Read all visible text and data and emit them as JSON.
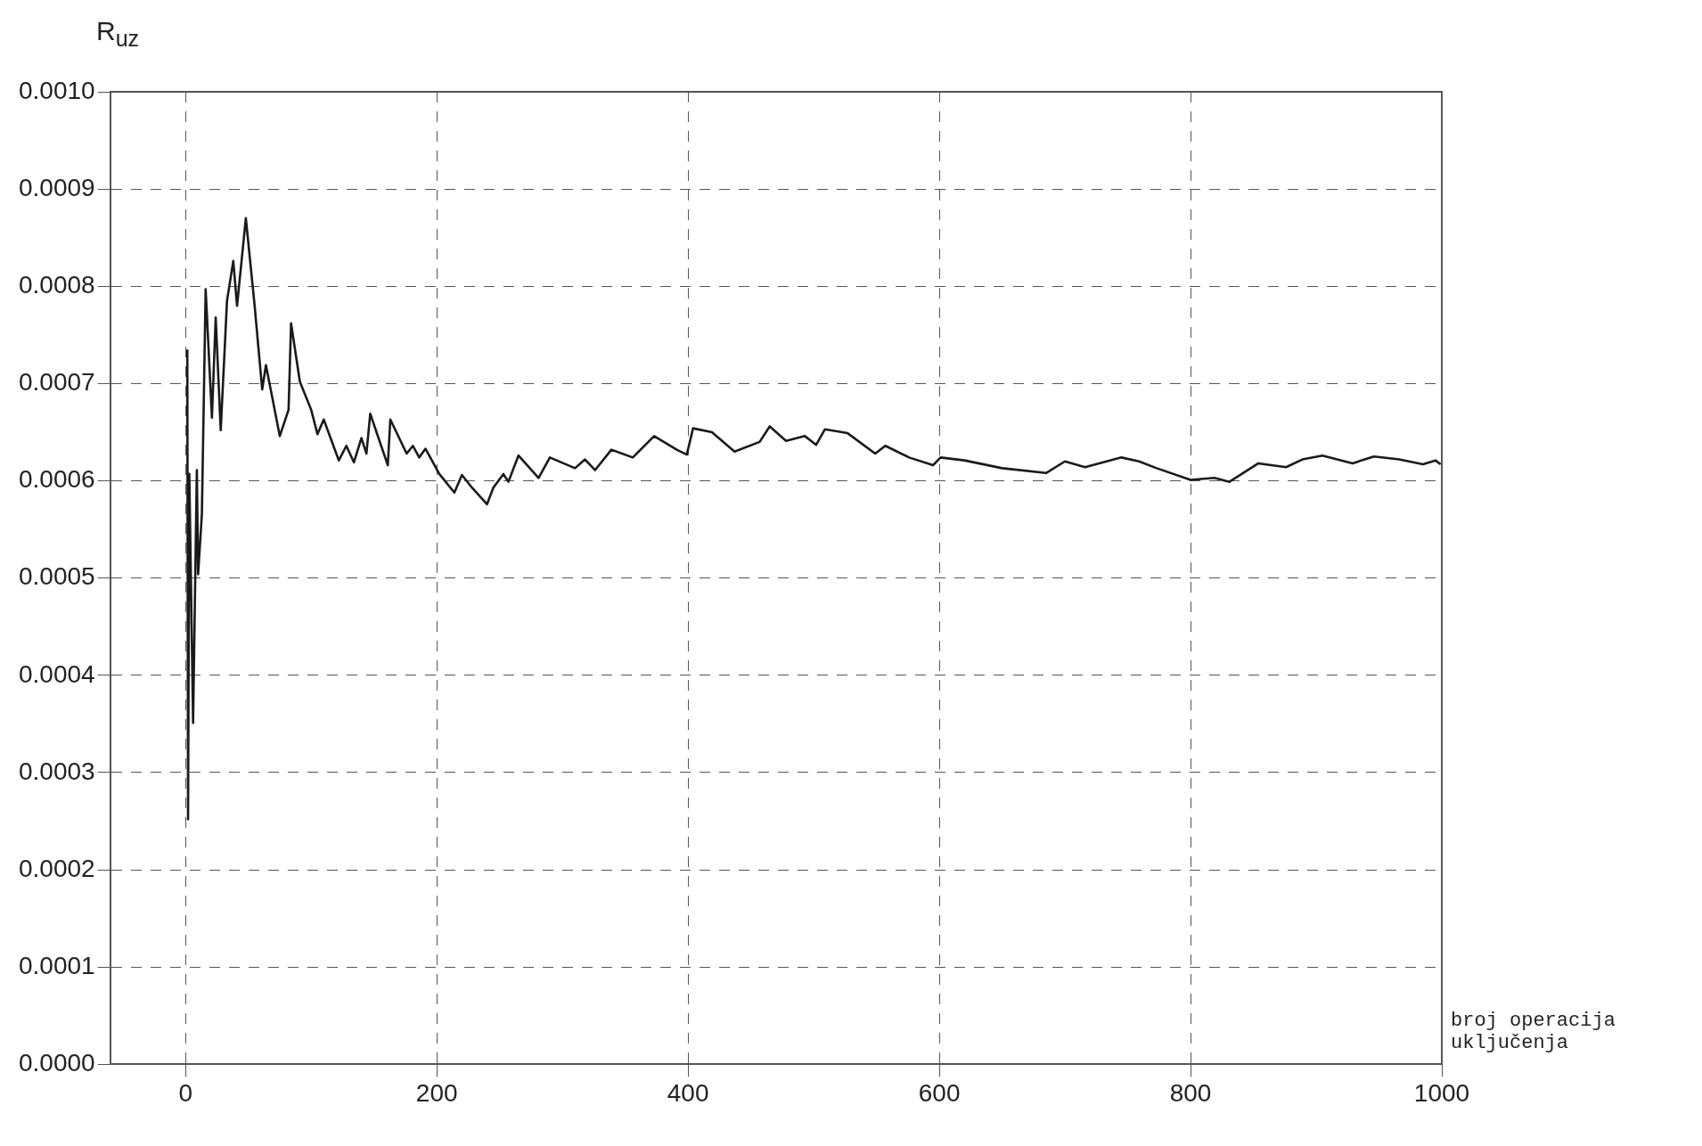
{
  "chart_data": {
    "type": "line",
    "ylabel": "R$_{uz}$",
    "xlabel": "broj operacija uključenja",
    "xlim": [
      -60,
      1000
    ],
    "xticks": [
      0,
      200,
      400,
      600,
      800,
      1000
    ],
    "ylim": [
      0,
      0.001
    ],
    "yticks": [
      {
        "value": 0,
        "label": "0.0000"
      },
      {
        "value": 0.0001,
        "label": "0.0001"
      },
      {
        "value": 0.0002,
        "label": "0.0002"
      },
      {
        "value": 0.0003,
        "label": "0.0003"
      },
      {
        "value": 0.0004,
        "label": "0.0004"
      },
      {
        "value": 0.0005,
        "label": "0.0005"
      },
      {
        "value": 0.0006,
        "label": "0.0006"
      },
      {
        "value": 0.0007,
        "label": "0.0007"
      },
      {
        "value": 0.0008,
        "label": "0.0008"
      },
      {
        "value": 0.0009,
        "label": "0.0009"
      },
      {
        "value": 0.001,
        "label": "0.0010"
      }
    ],
    "grid": true,
    "legend": false,
    "marker": "none",
    "line_style": "solid",
    "series": [
      {
        "color": "#1a1a1a",
        "x": [
          1.4,
          2,
          3,
          6,
          9,
          10,
          13,
          16,
          21,
          24,
          28,
          33,
          38,
          41,
          48,
          55,
          61,
          64,
          75,
          82,
          84,
          91,
          100,
          105,
          110,
          122,
          128,
          134,
          140,
          144,
          147,
          161,
          163,
          176,
          181,
          186,
          191,
          202,
          214,
          220,
          228,
          240,
          245,
          253,
          257,
          265,
          281,
          290,
          310,
          318,
          326,
          339,
          356,
          373,
          391,
          399,
          404,
          419,
          437,
          457,
          465,
          478,
          493,
          502,
          509,
          527,
          549,
          557,
          576,
          595,
          601,
          620,
          650,
          685,
          700,
          716,
          745,
          759,
          773,
          800,
          819,
          831,
          854,
          876,
          889,
          905,
          929,
          946,
          966,
          985,
          995,
          999
        ],
        "values": [
          0.000735,
          0.000252,
          0.000607,
          0.000351,
          0.000611,
          0.000504,
          0.000566,
          0.000797,
          0.000665,
          0.000768,
          0.000652,
          0.000785,
          0.000826,
          0.00078,
          0.00087,
          0.00078,
          0.000694,
          0.000719,
          0.000646,
          0.000673,
          0.000762,
          0.000702,
          0.000673,
          0.000648,
          0.000663,
          0.000621,
          0.000636,
          0.000619,
          0.000644,
          0.000628,
          0.000669,
          0.000616,
          0.000663,
          0.000628,
          0.000636,
          0.000624,
          0.000633,
          0.000607,
          0.000588,
          0.000606,
          0.000593,
          0.000576,
          0.000593,
          0.000607,
          0.000599,
          0.000626,
          0.000603,
          0.000624,
          0.000613,
          0.000622,
          0.000611,
          0.000632,
          0.000624,
          0.000646,
          0.000632,
          0.000627,
          0.000654,
          0.00065,
          0.00063,
          0.00064,
          0.000656,
          0.000641,
          0.000646,
          0.000637,
          0.000653,
          0.000649,
          0.000628,
          0.000636,
          0.000624,
          0.000616,
          0.000624,
          0.000621,
          0.000613,
          0.000608,
          0.00062,
          0.000614,
          0.000624,
          0.00062,
          0.000613,
          0.000601,
          0.000603,
          0.000599,
          0.000618,
          0.000614,
          0.000622,
          0.000626,
          0.000618,
          0.000625,
          0.000622,
          0.000617,
          0.000621,
          0.000617
        ]
      }
    ]
  }
}
